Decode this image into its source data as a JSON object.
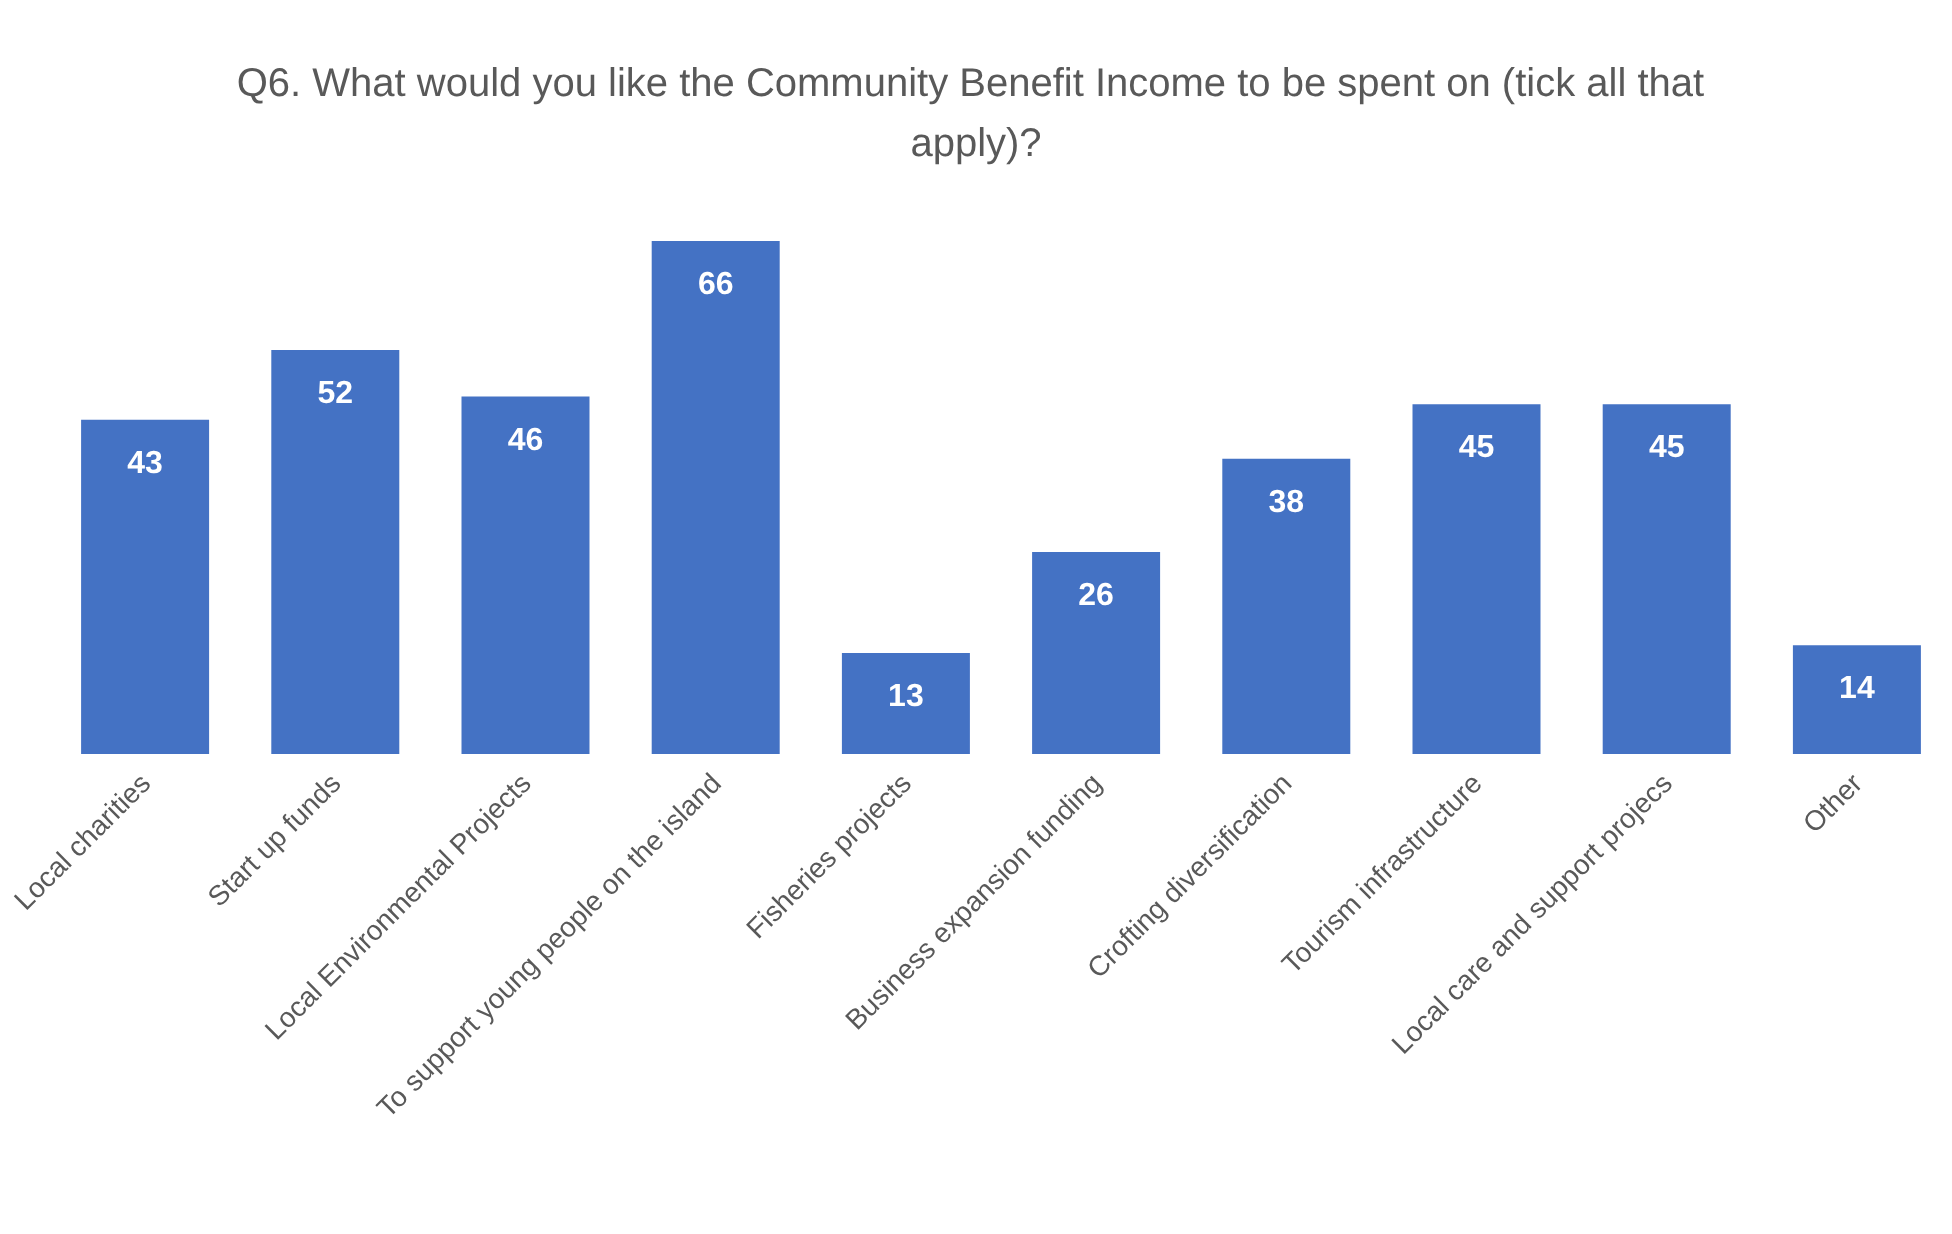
{
  "chart_data": {
    "type": "bar",
    "title": "Q6. What would you like the Community Benefit Income to be spent on (tick all that apply)?",
    "categories": [
      "Local charities",
      "Start up funds",
      "Local Environmental Projects",
      "To support young people on the island",
      "Fisheries projects",
      "Business expansion funding",
      "Crofting diversification",
      "Tourism infrastructure",
      "Local care and support projecs",
      "Other"
    ],
    "values": [
      43,
      52,
      46,
      66,
      13,
      26,
      38,
      45,
      45,
      14
    ],
    "color": "#4472c4",
    "data_labels": true,
    "tick_labels": "x"
  }
}
